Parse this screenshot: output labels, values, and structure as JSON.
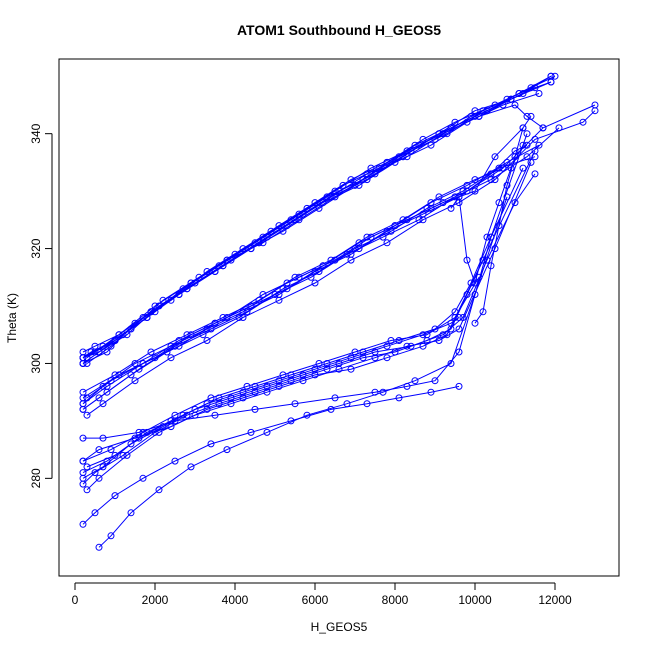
{
  "chart_data": {
    "type": "line",
    "title": "ATOM1 Southbound H_GEOS5",
    "xlabel": "H_GEOS5",
    "ylabel": "Theta (K)",
    "xlim": [
      -400,
      13600
    ],
    "ylim": [
      263,
      353
    ],
    "xticks": [
      0,
      2000,
      4000,
      6000,
      8000,
      10000,
      12000
    ],
    "yticks": [
      280,
      300,
      320,
      340
    ],
    "grid": false,
    "legend": "none",
    "marker": "open-circle",
    "color": "#0000ff",
    "series": [
      {
        "x": [
          200,
          500,
          1000,
          1800,
          2600,
          3500,
          4400,
          5200,
          6100,
          7000,
          7800,
          8600,
          9400,
          10300,
          11200,
          11900
        ],
        "y": [
          301,
          302,
          304,
          308,
          312,
          316,
          320,
          323,
          327,
          331,
          335,
          338,
          341,
          344,
          347,
          350
        ]
      },
      {
        "x": [
          200,
          600,
          1200,
          2000,
          2900,
          3800,
          4700,
          5600,
          6500,
          7400,
          8300,
          9200,
          10100,
          10900,
          11900
        ],
        "y": [
          300,
          302,
          305,
          309,
          314,
          318,
          321,
          325,
          329,
          333,
          336,
          340,
          343,
          346,
          349
        ]
      },
      {
        "x": [
          200,
          700,
          1400,
          2200,
          3100,
          4000,
          4900,
          5800,
          6700,
          7600,
          8500,
          9400,
          10300,
          11100,
          11900
        ],
        "y": [
          301,
          303,
          306,
          311,
          315,
          319,
          323,
          327,
          331,
          334,
          338,
          341,
          344,
          347,
          350
        ]
      },
      {
        "x": [
          200,
          800,
          1500,
          2400,
          3300,
          4200,
          5100,
          6000,
          6900,
          7800,
          8700,
          9500,
          10500,
          11400
        ],
        "y": [
          300,
          302,
          307,
          311,
          316,
          320,
          324,
          328,
          332,
          335,
          339,
          342,
          345,
          348
        ]
      },
      {
        "x": [
          200,
          500,
          1100,
          1900,
          2800,
          3700,
          4600,
          5500,
          6400,
          7300,
          8200,
          9100,
          10000,
          10900
        ],
        "y": [
          302,
          303,
          305,
          309,
          313,
          317,
          321,
          325,
          329,
          332,
          336,
          340,
          343,
          346
        ]
      },
      {
        "x": [
          300,
          900,
          1700,
          2600,
          3500,
          4400,
          5300,
          6200,
          7100,
          8000,
          8900,
          9800,
          10700,
          11600
        ],
        "y": [
          300,
          303,
          308,
          312,
          316,
          320,
          324,
          328,
          331,
          335,
          338,
          342,
          345,
          347
        ]
      },
      {
        "x": [
          200,
          600,
          1300,
          2100,
          3000,
          3900,
          4800,
          5700,
          6600,
          7500,
          8400,
          9300,
          10200,
          11100,
          11900
        ],
        "y": [
          301,
          302,
          305,
          310,
          314,
          318,
          322,
          326,
          330,
          333,
          337,
          340,
          344,
          347,
          349
        ]
      },
      {
        "x": [
          200,
          1000,
          1900,
          2800,
          3700,
          4600,
          5500,
          6400,
          7300,
          8200,
          9100,
          10000,
          10900,
          11500
        ],
        "y": [
          300,
          304,
          309,
          313,
          317,
          321,
          325,
          329,
          333,
          336,
          340,
          344,
          346,
          348
        ]
      },
      {
        "x": [
          300,
          1100,
          2000,
          2900,
          3800,
          4700,
          5600,
          6500,
          7400,
          8300,
          9200,
          10100,
          11000,
          11300,
          11700
        ],
        "y": [
          301,
          305,
          310,
          314,
          318,
          322,
          326,
          330,
          334,
          337,
          340,
          343,
          345,
          343,
          341
        ]
      },
      {
        "x": [
          200,
          400,
          1000,
          1800,
          2700,
          3600,
          4500,
          5400,
          6300,
          7200,
          8100,
          9000,
          9900,
          10800,
          12000
        ],
        "y": [
          301,
          302,
          304,
          308,
          313,
          317,
          321,
          325,
          329,
          332,
          336,
          339,
          343,
          346,
          350
        ]
      },
      {
        "x": [
          200,
          700,
          1500,
          2400,
          3300,
          4200,
          5100,
          6000,
          6900,
          7800,
          8700,
          9600,
          10400,
          11000,
          11300
        ],
        "y": [
          293,
          296,
          300,
          303,
          306,
          309,
          312,
          316,
          319,
          323,
          326,
          329,
          333,
          337,
          338
        ]
      },
      {
        "x": [
          200,
          800,
          1600,
          2500,
          3400,
          4300,
          5200,
          6100,
          7000,
          7900,
          8800,
          9700,
          10600,
          11500
        ],
        "y": [
          292,
          295,
          299,
          303,
          306,
          309,
          313,
          316,
          320,
          323,
          327,
          330,
          334,
          336
        ]
      },
      {
        "x": [
          300,
          900,
          1700,
          2600,
          3500,
          4400,
          5300,
          6200,
          7100,
          8000,
          8900,
          9800,
          10800,
          11600
        ],
        "y": [
          294,
          297,
          300,
          304,
          307,
          310,
          314,
          317,
          321,
          324,
          328,
          331,
          335,
          338
        ]
      },
      {
        "x": [
          200,
          600,
          1400,
          2300,
          3200,
          4100,
          5000,
          5900,
          6800,
          7700,
          8600,
          9500,
          10400,
          11300,
          12100
        ],
        "y": [
          292,
          294,
          298,
          302,
          305,
          308,
          312,
          315,
          319,
          322,
          325,
          329,
          332,
          336,
          341
        ]
      },
      {
        "x": [
          200,
          1000,
          1900,
          2800,
          3700,
          4600,
          5500,
          6400,
          7300,
          8200,
          9100,
          10000,
          10700
        ],
        "y": [
          295,
          298,
          302,
          305,
          308,
          311,
          315,
          318,
          322,
          325,
          329,
          332,
          334
        ]
      },
      {
        "x": [
          300,
          700,
          1500,
          2400,
          3300,
          4200,
          5100,
          6000,
          6900,
          7800,
          8700,
          9600,
          10500,
          11500,
          12700,
          13000
        ],
        "y": [
          291,
          293,
          297,
          301,
          304,
          308,
          311,
          314,
          318,
          321,
          325,
          328,
          332,
          339,
          342,
          344
        ]
      },
      {
        "x": [
          200,
          800,
          1700,
          2600,
          3500,
          4400,
          5300,
          6200,
          7100,
          8000,
          8900,
          9800,
          10700,
          11700,
          13000
        ],
        "y": [
          293,
          296,
          300,
          303,
          307,
          310,
          313,
          317,
          320,
          324,
          327,
          330,
          334,
          341,
          345
        ]
      },
      {
        "x": [
          200,
          1100,
          2000,
          2900,
          3800,
          4700,
          5600,
          6500,
          7400,
          8300,
          9200,
          10000,
          10500,
          11200
        ],
        "y": [
          294,
          298,
          301,
          305,
          308,
          312,
          315,
          318,
          322,
          325,
          328,
          330,
          336,
          341
        ]
      },
      {
        "x": [
          200,
          500,
          1200,
          2000,
          2800,
          3600,
          4500,
          5400,
          6300,
          7200,
          8000,
          8800,
          9400,
          9800,
          10200
        ],
        "y": [
          279,
          281,
          284,
          288,
          291,
          293,
          295,
          297,
          299,
          301,
          302,
          304,
          306,
          312,
          318
        ]
      },
      {
        "x": [
          200,
          700,
          1400,
          2200,
          3000,
          3900,
          4800,
          5700,
          6600,
          7500,
          8400,
          9200,
          9700,
          10300,
          11000,
          11500
        ],
        "y": [
          280,
          282,
          286,
          289,
          292,
          294,
          296,
          298,
          300,
          302,
          303,
          305,
          308,
          318,
          328,
          333
        ]
      },
      {
        "x": [
          200,
          900,
          1700,
          2500,
          3400,
          4300,
          5200,
          6100,
          7000,
          7900,
          8800,
          9500,
          10100
        ],
        "y": [
          283,
          285,
          288,
          291,
          294,
          296,
          298,
          300,
          302,
          304,
          305,
          308,
          315
        ]
      },
      {
        "x": [
          300,
          600,
          1300,
          2100,
          3000,
          3900,
          4800,
          5700,
          6600,
          7500,
          8300,
          9100,
          9600,
          10500,
          11400
        ],
        "y": [
          278,
          280,
          284,
          288,
          291,
          293,
          295,
          297,
          299,
          301,
          303,
          304,
          306,
          320,
          335
        ]
      },
      {
        "x": [
          200,
          800,
          1600,
          2400,
          3300,
          4200,
          5100,
          6000,
          6900,
          7800,
          8700,
          9400,
          9600
        ],
        "y": [
          281,
          283,
          287,
          290,
          293,
          295,
          297,
          299,
          301,
          303,
          305,
          307,
          308
        ]
      },
      {
        "x": [
          300,
          1000,
          1800,
          2700,
          3600,
          4500,
          5400,
          6300,
          7200,
          8100,
          9000,
          9500,
          9900,
          10400,
          11200
        ],
        "y": [
          282,
          284,
          288,
          291,
          294,
          296,
          298,
          300,
          302,
          304,
          306,
          309,
          314,
          322,
          334
        ]
      },
      {
        "x": [
          200,
          600,
          1500,
          2400,
          3300,
          4200,
          5100,
          6000,
          6900,
          7800,
          8700,
          9300,
          10200,
          11500
        ],
        "y": [
          283,
          285,
          287,
          289,
          292,
          294,
          296,
          298,
          299,
          301,
          303,
          305,
          318,
          337
        ]
      },
      {
        "x": [
          200,
          700,
          1600,
          2500,
          3500,
          4500,
          5500,
          6500,
          7500,
          8300,
          9000,
          9600,
          10400,
          11300
        ],
        "y": [
          287,
          287,
          288,
          290,
          291,
          292,
          293,
          294,
          295,
          296,
          297,
          302,
          322,
          340
        ]
      },
      {
        "x": [
          200,
          500,
          1000,
          1700,
          2500,
          3400,
          4400,
          5400,
          6400,
          7300,
          8100,
          8900,
          9600
        ],
        "y": [
          272,
          274,
          277,
          280,
          283,
          286,
          288,
          290,
          292,
          293,
          294,
          295,
          296
        ]
      },
      {
        "x": [
          600,
          900,
          1400,
          2100,
          2900,
          3800,
          4800,
          5800,
          6800,
          7700,
          8500,
          9400,
          10000,
          10800
        ],
        "y": [
          268,
          270,
          274,
          278,
          282,
          285,
          288,
          291,
          293,
          295,
          297,
          300,
          312,
          329
        ]
      },
      {
        "x": [
          9400,
          9600,
          9800,
          10000,
          10300,
          10600,
          10900,
          11200
        ],
        "y": [
          327,
          329,
          318,
          314,
          322,
          328,
          334,
          338
        ]
      },
      {
        "x": [
          10000,
          10200,
          10400,
          10600,
          10800,
          11000,
          11200,
          11400
        ],
        "y": [
          307,
          309,
          317,
          324,
          331,
          336,
          341,
          343
        ]
      }
    ]
  }
}
